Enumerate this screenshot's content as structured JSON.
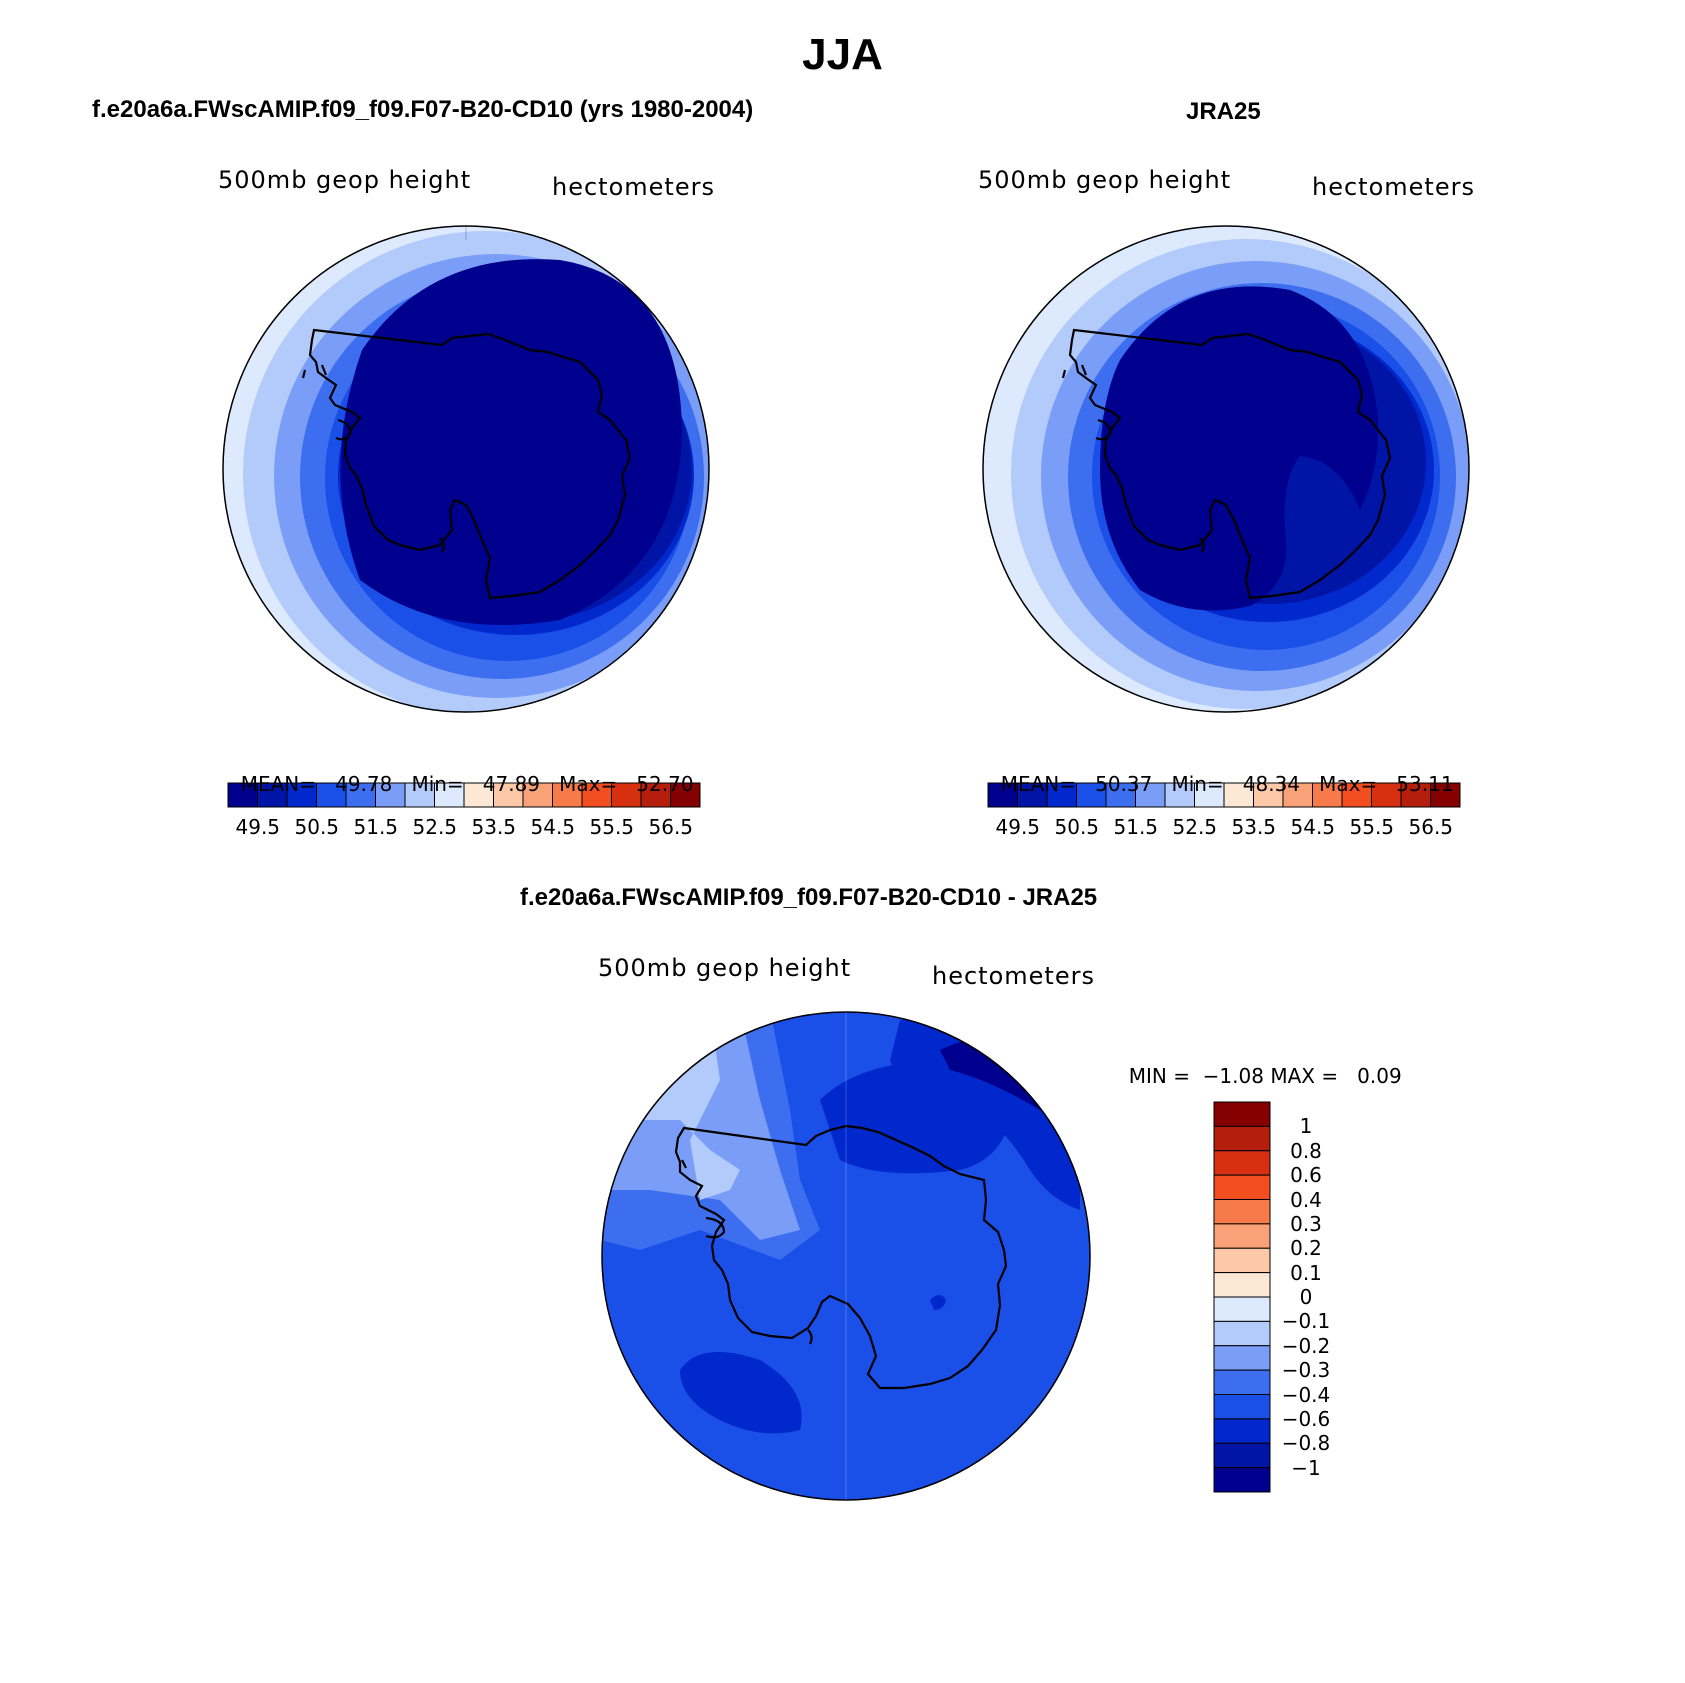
{
  "figure": {
    "title": "JJA"
  },
  "panels": {
    "model": {
      "title": "f.e20a6a.FWscAMIP.f09_f09.F07-B20-CD10 (yrs 1980-2004)",
      "left_label": "500mb geop height",
      "right_label": "hectometers",
      "stats": {
        "mean_label": "MEAN=",
        "mean": "49.78",
        "min_label": "Min=",
        "min": "47.89",
        "max_label": "Max=",
        "max": "52.70"
      }
    },
    "obs": {
      "title": "JRA25",
      "left_label": "500mb geop height",
      "right_label": "hectometers",
      "stats": {
        "mean_label": "MEAN=",
        "mean": "50.37",
        "min_label": "Min=",
        "min": "48.34",
        "max_label": "Max=",
        "max": "53.11"
      }
    },
    "diff": {
      "title": "f.e20a6a.FWscAMIP.f09_f09.F07-B20-CD10 - JRA25",
      "left_label": "500mb geop height",
      "right_label": "hectometers",
      "stats": {
        "min_label": "MIN =",
        "min": "−1.08",
        "max_label": "MAX =",
        "max": "0.09"
      }
    }
  },
  "chart_data": [
    {
      "type": "heatmap",
      "title": "f.e20a6a.FWscAMIP.f09_f09.F07-B20-CD10 (yrs 1980-2004)",
      "field": "500mb geop height",
      "units": "hectometers",
      "projection": "south polar stereographic",
      "mean": 49.78,
      "min": 47.89,
      "max": 52.7,
      "contour_levels": [
        49.5,
        50.0,
        50.5,
        51.0,
        51.5,
        52.0,
        52.5,
        53.0,
        53.5,
        54.0,
        54.5,
        55.0,
        55.5,
        56.0,
        56.5
      ],
      "colorbar_tick_labels": [
        "49.5",
        "50.5",
        "51.5",
        "52.5",
        "53.5",
        "54.5",
        "55.5",
        "56.5"
      ]
    },
    {
      "type": "heatmap",
      "title": "JRA25",
      "field": "500mb geop height",
      "units": "hectometers",
      "projection": "south polar stereographic",
      "mean": 50.37,
      "min": 48.34,
      "max": 53.11,
      "contour_levels": [
        49.5,
        50.0,
        50.5,
        51.0,
        51.5,
        52.0,
        52.5,
        53.0,
        53.5,
        54.0,
        54.5,
        55.0,
        55.5,
        56.0,
        56.5
      ],
      "colorbar_tick_labels": [
        "49.5",
        "50.5",
        "51.5",
        "52.5",
        "53.5",
        "54.5",
        "55.5",
        "56.5"
      ]
    },
    {
      "type": "heatmap",
      "title": "f.e20a6a.FWscAMIP.f09_f09.F07-B20-CD10 - JRA25",
      "field": "500mb geop height",
      "units": "hectometers",
      "projection": "south polar stereographic",
      "min": -1.08,
      "max": 0.09,
      "contour_levels": [
        -1,
        -0.8,
        -0.6,
        -0.4,
        -0.3,
        -0.2,
        -0.1,
        0,
        0.1,
        0.2,
        0.3,
        0.4,
        0.6,
        0.8,
        1
      ],
      "colorbar_tick_labels": [
        "1",
        "0.8",
        "0.6",
        "0.4",
        "0.3",
        "0.2",
        "0.1",
        "0",
        "−0.1",
        "−0.2",
        "−0.3",
        "−0.4",
        "−0.6",
        "−0.8",
        "−1"
      ]
    }
  ],
  "colors": {
    "palette": [
      "#00008f",
      "#0014a6",
      "#0028cc",
      "#1a4fe8",
      "#3d6ef0",
      "#7a9ef7",
      "#b3cbfb",
      "#dde9fd",
      "#fde8d6",
      "#fcc8a8",
      "#f9a27a",
      "#f77a4b",
      "#f24e1f",
      "#d63010",
      "#b51e0c",
      "#850000"
    ],
    "coastline": "#000000"
  }
}
